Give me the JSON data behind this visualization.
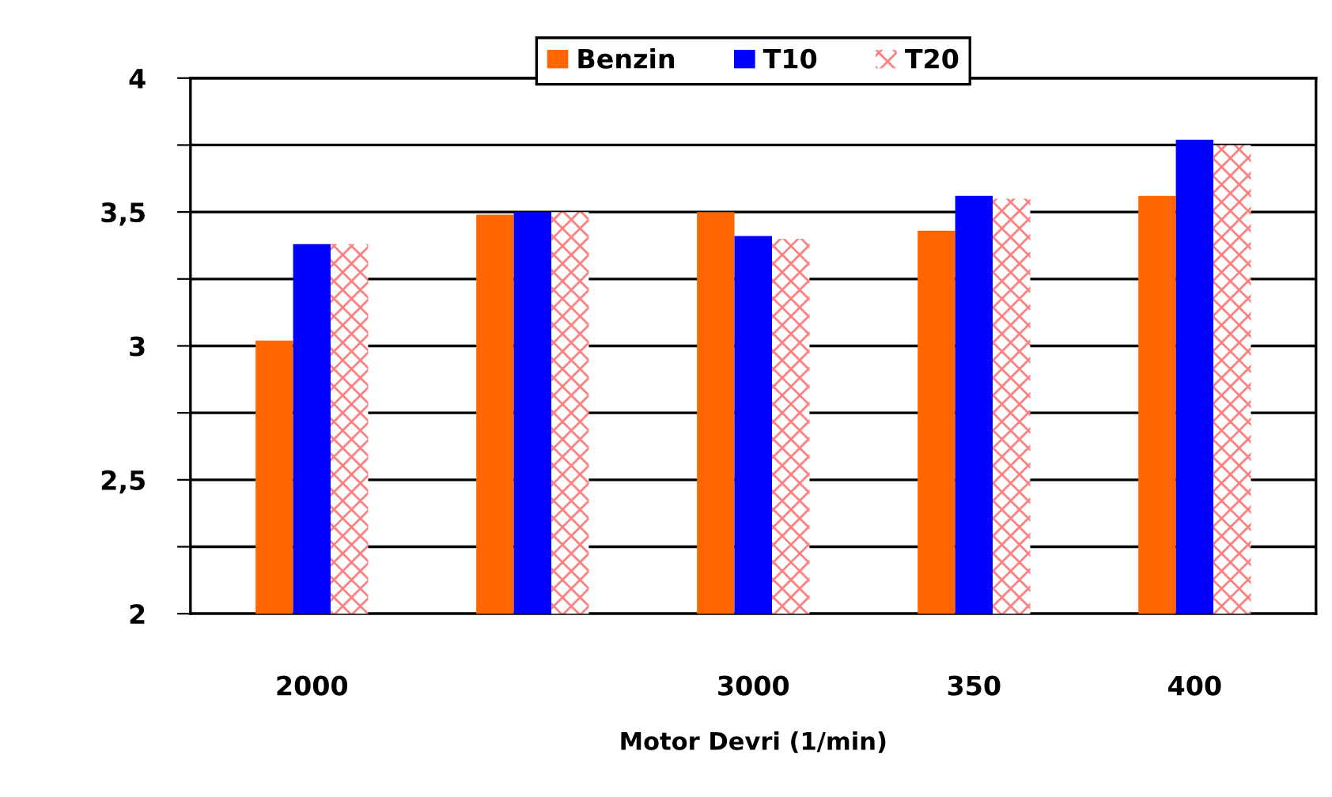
{
  "chart_data": {
    "type": "bar",
    "xlabel": "Motor Devri (1/min)",
    "categories": [
      "2000",
      null,
      "3000",
      "350",
      "400"
    ],
    "series": [
      {
        "name": "Benzin",
        "color": "#ff6600",
        "values": [
          3.02,
          3.49,
          3.5,
          3.43,
          3.56
        ]
      },
      {
        "name": "T10",
        "color": "#0000ff",
        "values": [
          3.38,
          3.5,
          3.41,
          3.56,
          3.77
        ]
      },
      {
        "name": "T20",
        "color": "#ff8080",
        "values": [
          3.38,
          3.5,
          3.4,
          3.55,
          3.75
        ]
      }
    ],
    "ylim": [
      2,
      4
    ],
    "yticks": [
      2,
      {
        "value": 2.25,
        "label": null
      },
      {
        "value": 2.5,
        "label": "2,5"
      },
      {
        "value": 2.75,
        "label": null
      },
      3,
      {
        "value": 3.25,
        "label": null
      },
      {
        "value": 3.5,
        "label": "3,5"
      },
      {
        "value": 3.75,
        "label": null
      },
      4
    ],
    "grid": "y",
    "legend": "top"
  }
}
